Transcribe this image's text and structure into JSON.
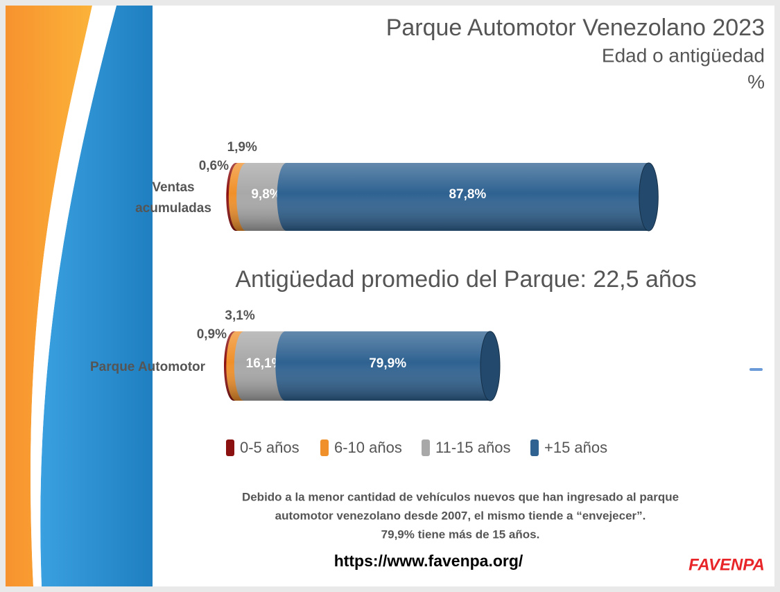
{
  "chart_data": {
    "type": "stacked-bar",
    "title": "Parque Automotor Venezolano 2023",
    "subtitle": "Edad o antigüedad",
    "unit": "%",
    "annotation": "Antigüedad promedio del Parque: 22,5 años",
    "categories": [
      "Ventas acumuladas",
      "Parque Automotor"
    ],
    "series": [
      {
        "name": "0-5 años",
        "color": "#8b1010",
        "values": [
          0.6,
          0.9
        ],
        "value_labels": [
          "0,6%",
          "0,9%"
        ]
      },
      {
        "name": "6-10 años",
        "color": "#f0902a",
        "values": [
          1.9,
          3.1
        ],
        "value_labels": [
          "1,9%",
          "3,1%"
        ]
      },
      {
        "name": "11-15 años",
        "color": "#a8a8a8",
        "values": [
          9.8,
          16.1
        ],
        "value_labels": [
          "9,8%",
          "16,1%"
        ]
      },
      {
        "name": "+15 años",
        "color": "#2f6291",
        "values": [
          87.8,
          79.9
        ],
        "value_labels": [
          "87,8%",
          "79,9%"
        ]
      }
    ],
    "note": [
      "Debido a la menor cantidad de vehículos nuevos que han ingresado al parque",
      "automotor venezolano desde 2007, el mismo tiende a “envejecer”.",
      "79,9% tiene más de 15 años."
    ],
    "url": "https://www.favenpa.org/",
    "logo": "FAVENPA"
  }
}
